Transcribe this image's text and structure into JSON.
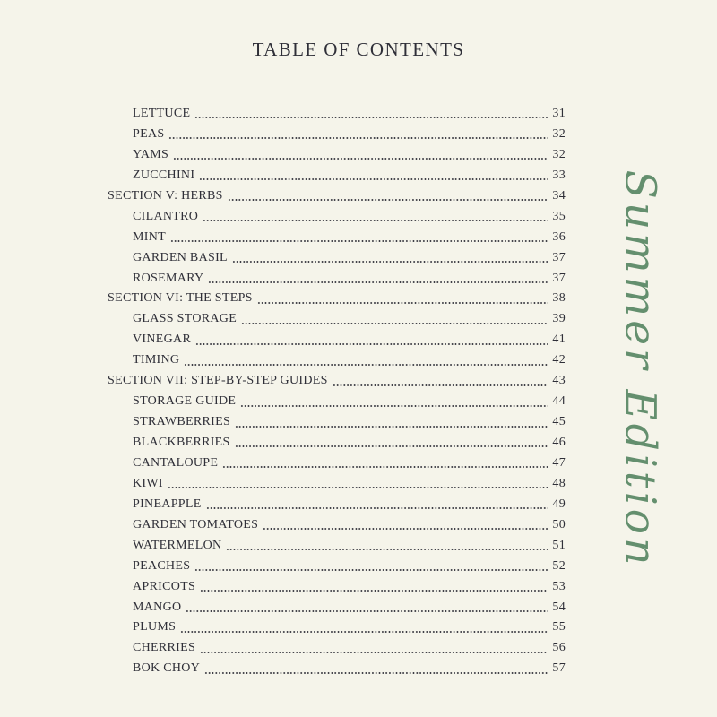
{
  "page": {
    "title": "TABLE OF CONTENTS",
    "side_label": "Summer Edition",
    "colors": {
      "background": "#f5f4ea",
      "text": "#2f2f38",
      "script_green": "#648f6e"
    }
  },
  "toc": {
    "entries": [
      {
        "label": "LETTUCE",
        "page": "31",
        "level": "sub"
      },
      {
        "label": "PEAS",
        "page": "32",
        "level": "sub"
      },
      {
        "label": "YAMS",
        "page": "32",
        "level": "sub"
      },
      {
        "label": "ZUCCHINI",
        "page": "33",
        "level": "sub"
      },
      {
        "label": "SECTION V: HERBS",
        "page": "34",
        "level": "section"
      },
      {
        "label": "CILANTRO",
        "page": "35",
        "level": "sub"
      },
      {
        "label": "MINT",
        "page": "36",
        "level": "sub"
      },
      {
        "label": "GARDEN BASIL",
        "page": "37",
        "level": "sub"
      },
      {
        "label": "ROSEMARY",
        "page": "37",
        "level": "sub"
      },
      {
        "label": "SECTION VI: THE STEPS",
        "page": "38",
        "level": "section"
      },
      {
        "label": "GLASS STORAGE",
        "page": "39",
        "level": "sub"
      },
      {
        "label": "VINEGAR",
        "page": "41",
        "level": "sub"
      },
      {
        "label": "TIMING",
        "page": "42",
        "level": "sub"
      },
      {
        "label": "SECTION VII: STEP-BY-STEP GUIDES",
        "page": "43",
        "level": "section"
      },
      {
        "label": "STORAGE GUIDE",
        "page": "44",
        "level": "sub"
      },
      {
        "label": "STRAWBERRIES",
        "page": "45",
        "level": "sub"
      },
      {
        "label": "BLACKBERRIES",
        "page": "46",
        "level": "sub"
      },
      {
        "label": "CANTALOUPE",
        "page": "47",
        "level": "sub"
      },
      {
        "label": "KIWI",
        "page": "48",
        "level": "sub"
      },
      {
        "label": "PINEAPPLE",
        "page": "49",
        "level": "sub"
      },
      {
        "label": "GARDEN TOMATOES",
        "page": "50",
        "level": "sub"
      },
      {
        "label": "WATERMELON",
        "page": "51",
        "level": "sub"
      },
      {
        "label": "PEACHES",
        "page": "52",
        "level": "sub"
      },
      {
        "label": "APRICOTS",
        "page": "53",
        "level": "sub"
      },
      {
        "label": "MANGO",
        "page": "54",
        "level": "sub"
      },
      {
        "label": "PLUMS",
        "page": "55",
        "level": "sub"
      },
      {
        "label": "CHERRIES",
        "page": "56",
        "level": "sub"
      },
      {
        "label": "BOK CHOY",
        "page": "57",
        "level": "sub"
      }
    ]
  }
}
